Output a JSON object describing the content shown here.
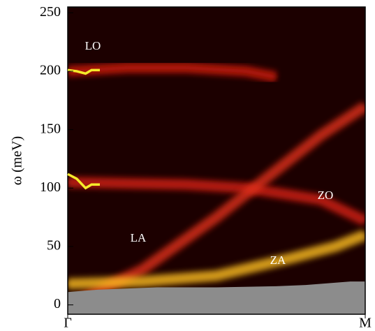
{
  "chart_data": {
    "type": "line",
    "y_label": "ω (meV)",
    "xlim": [
      0,
      1
    ],
    "xticks": [
      {
        "value": 0,
        "label": "Γ"
      },
      {
        "value": 1,
        "label": "M"
      }
    ],
    "ylim": [
      -8,
      255
    ],
    "yticks": [
      0,
      50,
      100,
      150,
      200,
      250
    ],
    "annotations": [
      "LO",
      "LA",
      "ZO",
      "ZA"
    ],
    "background": "#1c0000",
    "series": [
      {
        "style": "glow",
        "color": "#d01a10",
        "x": [
          0,
          0.2,
          0.4,
          0.6,
          0.7
        ],
        "values": [
          200,
          203,
          203,
          200,
          195
        ]
      },
      {
        "style": "glow",
        "color": "#d82414",
        "x": [
          0,
          0.2,
          0.4,
          0.6,
          0.85,
          1
        ],
        "values": [
          105,
          104,
          103,
          100,
          90,
          72
        ]
      },
      {
        "style": "glow",
        "color": "#e0301a",
        "x": [
          0,
          0.25,
          0.5,
          0.7,
          0.85,
          1
        ],
        "values": [
          0,
          30,
          75,
          115,
          145,
          170
        ]
      },
      {
        "style": "glow",
        "color": "#ffc020",
        "x": [
          0,
          0.25,
          0.5,
          0.75,
          0.9,
          1
        ],
        "values": [
          18,
          20,
          25,
          40,
          50,
          60
        ]
      },
      {
        "style": "area",
        "color": "#8c8c8c",
        "x": [
          0,
          0.1,
          0.3,
          0.5,
          0.7,
          0.8,
          0.95,
          1
        ],
        "values": [
          11,
          13,
          15,
          15,
          16,
          17,
          20,
          20
        ]
      },
      {
        "style": "line",
        "color": "#f5ea2a",
        "x": [
          0,
          0.03,
          0.06,
          0.08,
          0.108
        ],
        "values": [
          201,
          200,
          198,
          201,
          201
        ]
      },
      {
        "style": "line",
        "color": "#f5ea2a",
        "x": [
          0,
          0.03,
          0.06,
          0.08,
          0.108
        ],
        "values": [
          112,
          108,
          100,
          103,
          103
        ]
      }
    ]
  }
}
